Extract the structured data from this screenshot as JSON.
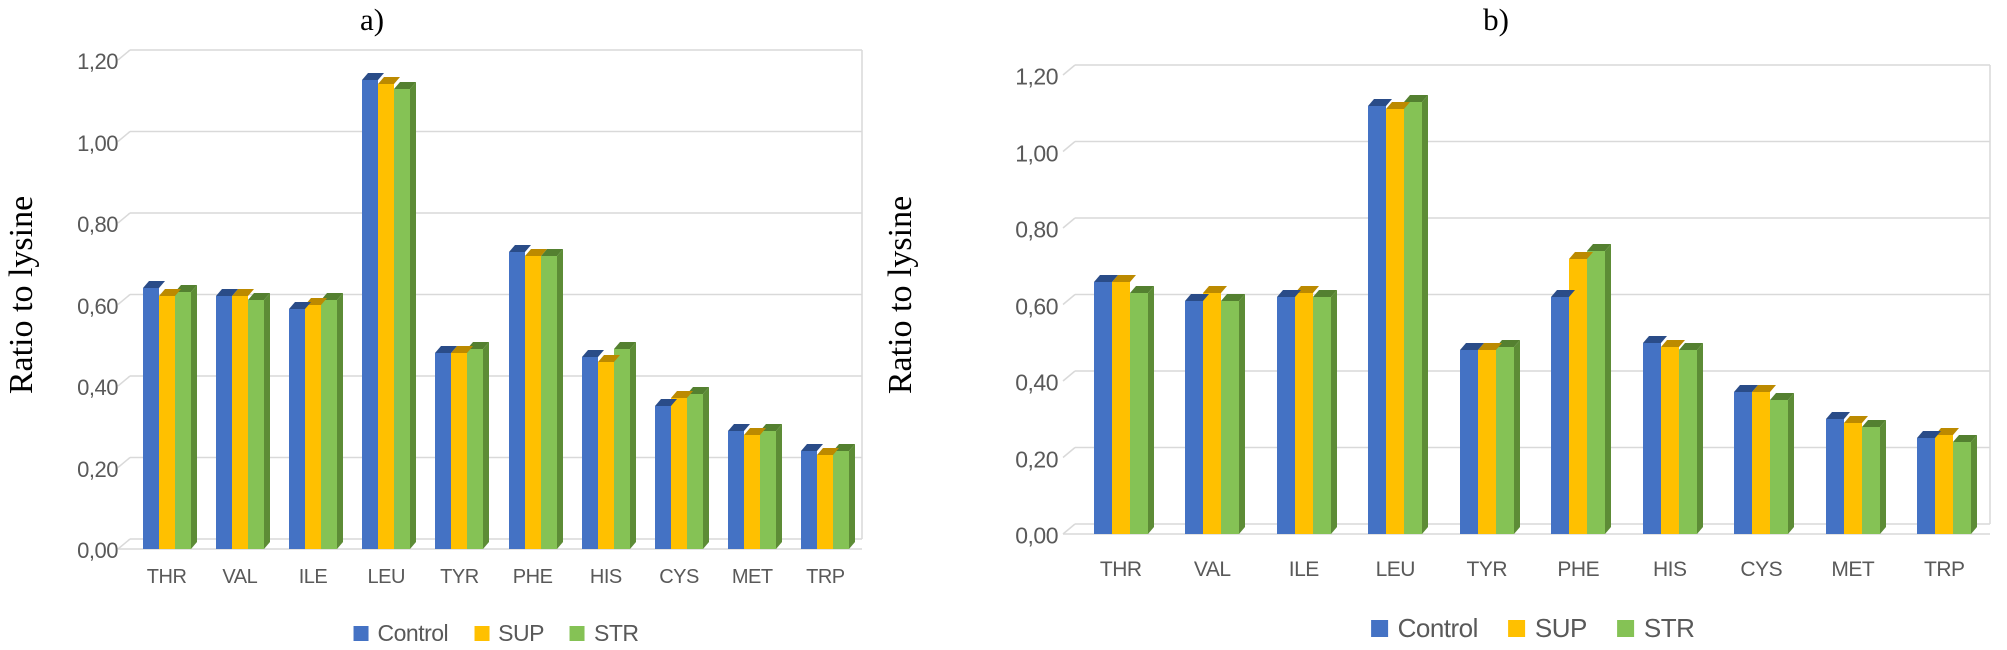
{
  "figure_background": "#ffffff",
  "grid_color": "#d9d9d9",
  "text_color": "#595959",
  "chart_data": [
    {
      "type": "bar",
      "title": "a)",
      "ylabel": "Ratio to lysine",
      "categories": [
        "THR",
        "VAL",
        "ILE",
        "LEU",
        "TYR",
        "PHE",
        "HIS",
        "CYS",
        "MET",
        "TRP"
      ],
      "series": [
        {
          "name": "Control",
          "color": "#4472C4",
          "color_top": "#2a4c88",
          "color_side": "#30549b",
          "values": [
            0.64,
            0.62,
            0.59,
            1.15,
            0.48,
            0.73,
            0.47,
            0.35,
            0.29,
            0.24
          ]
        },
        {
          "name": "SUP",
          "color": "#FFC000",
          "color_top": "#bc8a00",
          "color_side": "#c69500",
          "values": [
            0.62,
            0.62,
            0.6,
            1.14,
            0.48,
            0.72,
            0.46,
            0.37,
            0.28,
            0.23
          ]
        },
        {
          "name": "STR",
          "color": "#85C255",
          "color_top": "#548030",
          "color_side": "#5d8c36",
          "values": [
            0.63,
            0.61,
            0.61,
            1.13,
            0.49,
            0.72,
            0.49,
            0.38,
            0.29,
            0.24
          ]
        }
      ],
      "ylim": [
        0,
        1.2
      ],
      "y_tick_labels": [
        "0,00",
        "0,20",
        "0,40",
        "0,60",
        "0,80",
        "1,00",
        "1,20"
      ],
      "grid": true,
      "legend_position": "bottom",
      "legend": [
        "Control",
        "SUP",
        "STR"
      ]
    },
    {
      "type": "bar",
      "title": "b)",
      "ylabel": "Ratio to lysine",
      "categories": [
        "THR",
        "VAL",
        "ILE",
        "LEU",
        "TYR",
        "PHE",
        "HIS",
        "CYS",
        "MET",
        "TRP"
      ],
      "series": [
        {
          "name": "Control",
          "color": "#4472C4",
          "color_top": "#2a4c88",
          "color_side": "#30549b",
          "values": [
            0.66,
            0.61,
            0.62,
            1.12,
            0.48,
            0.62,
            0.5,
            0.37,
            0.3,
            0.25
          ]
        },
        {
          "name": "SUP",
          "color": "#FFC000",
          "color_top": "#bc8a00",
          "color_side": "#c69500",
          "values": [
            0.66,
            0.63,
            0.63,
            1.11,
            0.48,
            0.72,
            0.49,
            0.37,
            0.29,
            0.26
          ]
        },
        {
          "name": "STR",
          "color": "#85C255",
          "color_top": "#548030",
          "color_side": "#5d8c36",
          "values": [
            0.63,
            0.61,
            0.62,
            1.13,
            0.49,
            0.74,
            0.48,
            0.35,
            0.28,
            0.24
          ]
        }
      ],
      "ylim": [
        0,
        1.2
      ],
      "y_tick_labels": [
        "0,00",
        "0,20",
        "0,40",
        "0,60",
        "0,80",
        "1,00",
        "1,20"
      ],
      "grid": true,
      "legend_position": "bottom",
      "legend": [
        "Control",
        "SUP",
        "STR"
      ]
    }
  ]
}
